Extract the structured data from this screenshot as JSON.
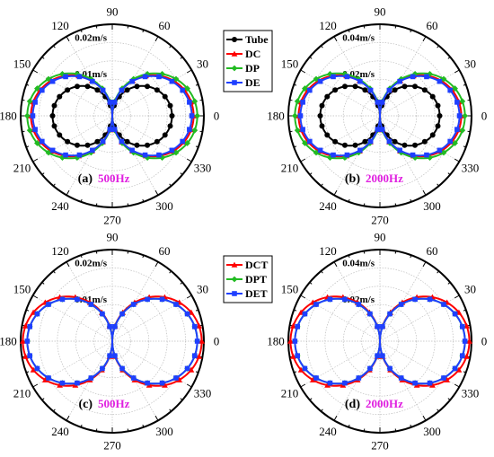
{
  "colors": {
    "Tube": "#000000",
    "DC": "#ff0000",
    "DP": "#22bb22",
    "DE": "#1f3fff",
    "DCT": "#ff0000",
    "DPT": "#22bb22",
    "DET": "#1f3fff",
    "freq": "#e020e0"
  },
  "chart_data": [
    {
      "type": "polar",
      "panel": "(a)",
      "frequency": "500Hz",
      "angle_ticks": [
        "90",
        "60",
        "30",
        "0",
        "330",
        "300",
        "270",
        "240",
        "210",
        "180",
        "150",
        "120"
      ],
      "radial_labels": [
        "0.01m/s",
        "0.02m/s"
      ],
      "radial_values": [
        0.01,
        0.02
      ],
      "rmax": 0.025,
      "legend": [
        "Tube",
        "DC",
        "DP",
        "DE"
      ],
      "series": [
        {
          "name": "Tube",
          "marker": "circle",
          "peak": 0.0163
        },
        {
          "name": "DC",
          "marker": "triangle",
          "peak": 0.0222
        },
        {
          "name": "DP",
          "marker": "diamond",
          "peak": 0.0232
        },
        {
          "name": "DE",
          "marker": "square",
          "peak": 0.0217
        }
      ]
    },
    {
      "type": "polar",
      "panel": "(b)",
      "frequency": "2000Hz",
      "angle_ticks": [
        "90",
        "60",
        "30",
        "0",
        "330",
        "300",
        "270",
        "240",
        "210",
        "180",
        "150",
        "120"
      ],
      "radial_labels": [
        "0.02m/s",
        "0.04m/s"
      ],
      "radial_values": [
        0.02,
        0.04
      ],
      "rmax": 0.05,
      "series": [
        {
          "name": "Tube",
          "marker": "circle",
          "peak": 0.0326
        },
        {
          "name": "DC",
          "marker": "triangle",
          "peak": 0.0444
        },
        {
          "name": "DP",
          "marker": "diamond",
          "peak": 0.0464
        },
        {
          "name": "DE",
          "marker": "square",
          "peak": 0.0434
        }
      ]
    },
    {
      "type": "polar",
      "panel": "(c)",
      "frequency": "500Hz",
      "angle_ticks": [
        "90",
        "60",
        "30",
        "0",
        "330",
        "300",
        "270",
        "240",
        "210",
        "180",
        "150",
        "120"
      ],
      "radial_labels": [
        "0.01m/s",
        "0.02m/s"
      ],
      "radial_values": [
        0.01,
        0.02
      ],
      "rmax": 0.025,
      "legend": [
        "DCT",
        "DPT",
        "DET"
      ],
      "series": [
        {
          "name": "DCT",
          "marker": "triangle",
          "peak": 0.0244
        },
        {
          "name": "DPT",
          "marker": "diamond",
          "peak": 0.0232
        },
        {
          "name": "DET",
          "marker": "square",
          "peak": 0.0232
        }
      ]
    },
    {
      "type": "polar",
      "panel": "(d)",
      "frequency": "2000Hz",
      "angle_ticks": [
        "90",
        "60",
        "30",
        "0",
        "330",
        "300",
        "270",
        "240",
        "210",
        "180",
        "150",
        "120"
      ],
      "radial_labels": [
        "0.02m/s",
        "0.04m/s"
      ],
      "radial_values": [
        0.02,
        0.04
      ],
      "rmax": 0.05,
      "series": [
        {
          "name": "DCT",
          "marker": "triangle",
          "peak": 0.0488
        },
        {
          "name": "DPT",
          "marker": "diamond",
          "peak": 0.0464
        },
        {
          "name": "DET",
          "marker": "square",
          "peak": 0.0464
        }
      ]
    }
  ]
}
